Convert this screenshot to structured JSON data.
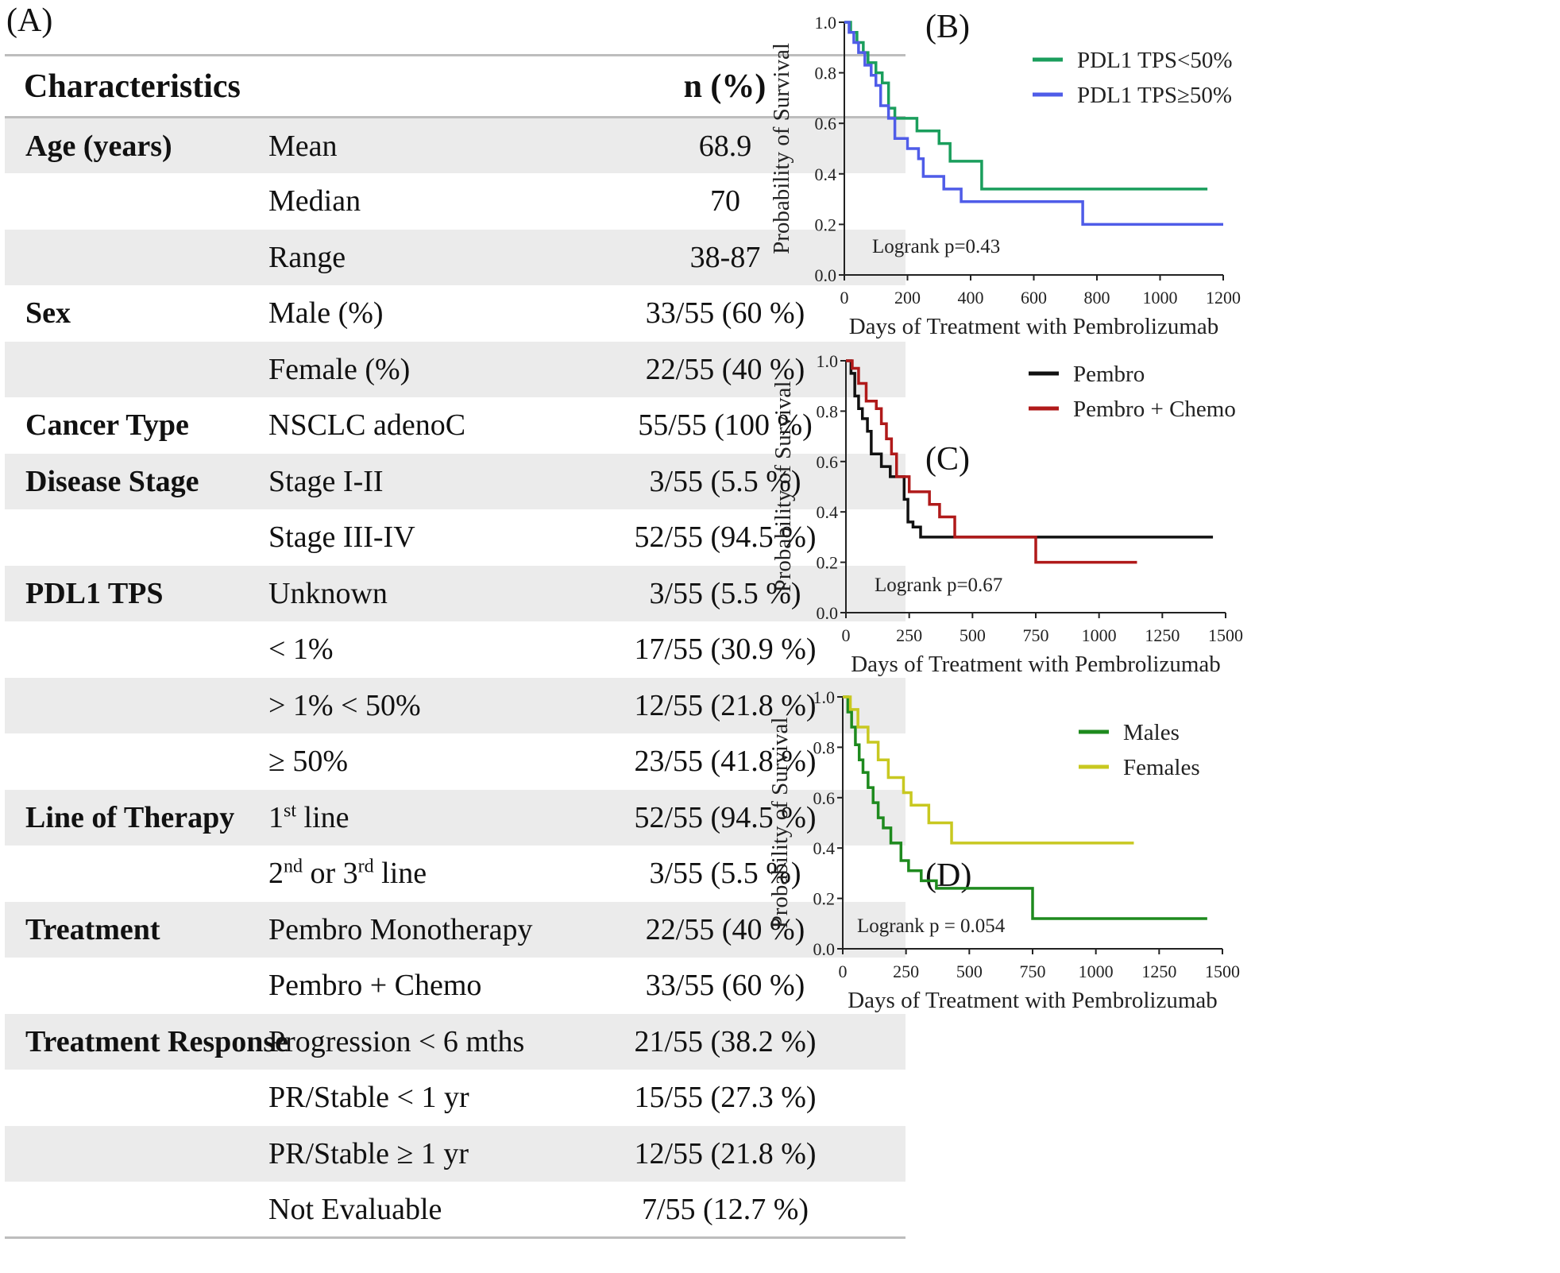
{
  "panel_a": {
    "label": "(A)",
    "header": {
      "characteristics": "Characteristics",
      "npct": "n (%)"
    },
    "rows": [
      {
        "category": "Age (years)",
        "sub": "Mean",
        "value": "68.9"
      },
      {
        "category": "",
        "sub": "Median",
        "value": "70"
      },
      {
        "category": "",
        "sub": "Range",
        "value": "38-87"
      },
      {
        "category": "Sex",
        "sub": "Male (%)",
        "value": "33/55 (60 %)"
      },
      {
        "category": "",
        "sub": "Female (%)",
        "value": "22/55 (40 %)"
      },
      {
        "category": "Cancer Type",
        "sub": "NSCLC adenoC",
        "value": "55/55 (100 %)"
      },
      {
        "category": "Disease Stage",
        "sub": "Stage I-II",
        "value": "3/55 (5.5 %)"
      },
      {
        "category": "",
        "sub": "Stage III-IV",
        "value": "52/55 (94.5 %)"
      },
      {
        "category": "PDL1 TPS",
        "sub": "Unknown",
        "value": "3/55 (5.5 %)"
      },
      {
        "category": "",
        "sub": "< 1%",
        "value": "17/55 (30.9 %)"
      },
      {
        "category": "",
        "sub": "> 1% < 50%",
        "value": "12/55 (21.8 %)"
      },
      {
        "category": "",
        "sub": "≥ 50%",
        "value": "23/55 (41.8 %)"
      },
      {
        "category": "Line of Therapy",
        "sub_base": "1",
        "sub_sup": "st",
        "sub_rest": " line",
        "value": "52/55 (94.5 %)"
      },
      {
        "category": "",
        "sub_base": "2",
        "sub_sup": "nd",
        "sub_mid": " or 3",
        "sub_sup2": "rd",
        "sub_rest": " line",
        "value": "3/55 (5.5 %)"
      },
      {
        "category": "Treatment",
        "sub": "Pembro Monotherapy",
        "value": "22/55 (40 %)"
      },
      {
        "category": "",
        "sub": "Pembro + Chemo",
        "value": "33/55 (60 %)"
      },
      {
        "category": "Treatment Response",
        "sub": "Progression < 6 mths",
        "value": "21/55 (38.2 %)"
      },
      {
        "category": "",
        "sub": "PR/Stable < 1 yr",
        "value": "15/55 (27.3 %)"
      },
      {
        "category": "",
        "sub": "PR/Stable ≥ 1 yr",
        "value": "12/55 (21.8 %)"
      },
      {
        "category": "",
        "sub": "Not Evaluable",
        "value": "7/55 (12.7 %)"
      }
    ]
  },
  "chart_data": [
    {
      "id": "B",
      "label": "(B)",
      "type": "line",
      "xlabel": "Days of Treatment with Pembrolizumab",
      "ylabel": "Probability of Survival",
      "xlim": [
        0,
        1200
      ],
      "ylim": [
        0,
        1.0
      ],
      "xticks": [
        0,
        200,
        400,
        600,
        800,
        1000,
        1200
      ],
      "yticks": [
        0.0,
        0.2,
        0.4,
        0.6,
        0.8,
        1.0
      ],
      "annotation": "Logrank p=0.43",
      "series": [
        {
          "name": "PDL1 TPS<50%",
          "color": "#1a9e5c",
          "x": [
            0,
            20,
            40,
            60,
            75,
            100,
            120,
            140,
            160,
            230,
            300,
            335,
            435,
            1150
          ],
          "y": [
            1.0,
            0.96,
            0.92,
            0.88,
            0.84,
            0.8,
            0.76,
            0.66,
            0.62,
            0.57,
            0.52,
            0.45,
            0.34,
            0.34
          ]
        },
        {
          "name": "PDL1 TPS≥50%",
          "color": "#4f5ce8",
          "x": [
            0,
            15,
            30,
            45,
            65,
            85,
            100,
            115,
            140,
            160,
            200,
            235,
            250,
            315,
            370,
            755,
            1200
          ],
          "y": [
            1.0,
            0.96,
            0.92,
            0.88,
            0.83,
            0.79,
            0.75,
            0.67,
            0.62,
            0.54,
            0.5,
            0.46,
            0.39,
            0.34,
            0.29,
            0.2,
            0.2
          ]
        }
      ]
    },
    {
      "id": "C",
      "label": "(C)",
      "type": "line",
      "xlabel": "Days of Treatment with Pembrolizumab",
      "ylabel": "Probability of Survival",
      "xlim": [
        0,
        1500
      ],
      "ylim": [
        0,
        1.0
      ],
      "xticks": [
        0,
        250,
        500,
        750,
        1000,
        1250,
        1500
      ],
      "yticks": [
        0.0,
        0.2,
        0.4,
        0.6,
        0.8,
        1.0
      ],
      "annotation": "Logrank p=0.67",
      "series": [
        {
          "name": "Pembro",
          "color": "#111111",
          "x": [
            0,
            20,
            35,
            50,
            65,
            85,
            100,
            140,
            175,
            230,
            245,
            265,
            295,
            1450
          ],
          "y": [
            1.0,
            0.95,
            0.86,
            0.81,
            0.77,
            0.72,
            0.63,
            0.58,
            0.54,
            0.45,
            0.36,
            0.34,
            0.3,
            0.3
          ]
        },
        {
          "name": "Pembro + Chemo",
          "color": "#b01a1a",
          "x": [
            0,
            25,
            50,
            80,
            120,
            140,
            160,
            180,
            200,
            250,
            330,
            370,
            430,
            750,
            1150
          ],
          "y": [
            1.0,
            0.97,
            0.91,
            0.84,
            0.81,
            0.75,
            0.69,
            0.63,
            0.54,
            0.48,
            0.43,
            0.38,
            0.3,
            0.2,
            0.2
          ]
        }
      ]
    },
    {
      "id": "D",
      "label": "(D)",
      "type": "line",
      "xlabel": "Days of Treatment with Pembrolizumab",
      "ylabel": "Probability of Survival",
      "xlim": [
        0,
        1500
      ],
      "ylim": [
        0,
        1.0
      ],
      "xticks": [
        0,
        250,
        500,
        750,
        1000,
        1250,
        1500
      ],
      "yticks": [
        0.0,
        0.2,
        0.4,
        0.6,
        0.8,
        1.0
      ],
      "annotation": "Logrank p = 0.054",
      "series": [
        {
          "name": "Males",
          "color": "#1e8a1e",
          "x": [
            0,
            20,
            35,
            50,
            65,
            80,
            100,
            120,
            140,
            160,
            190,
            230,
            260,
            310,
            370,
            750,
            1440
          ],
          "y": [
            1.0,
            0.94,
            0.88,
            0.81,
            0.75,
            0.7,
            0.64,
            0.58,
            0.52,
            0.48,
            0.42,
            0.35,
            0.31,
            0.27,
            0.24,
            0.12,
            0.12
          ]
        },
        {
          "name": "Females",
          "color": "#c8c820",
          "x": [
            0,
            30,
            60,
            100,
            140,
            180,
            240,
            270,
            340,
            430,
            1150
          ],
          "y": [
            1.0,
            0.95,
            0.88,
            0.82,
            0.75,
            0.68,
            0.62,
            0.57,
            0.5,
            0.42,
            0.42
          ]
        }
      ]
    }
  ]
}
